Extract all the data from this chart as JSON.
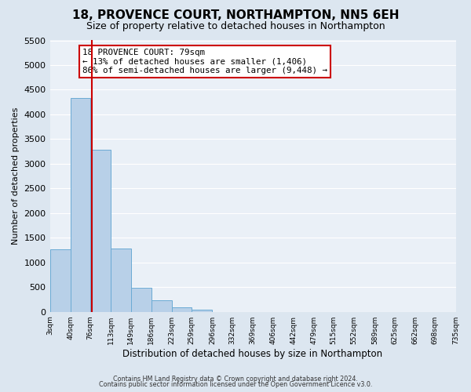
{
  "title": "18, PROVENCE COURT, NORTHAMPTON, NN5 6EH",
  "subtitle": "Size of property relative to detached houses in Northampton",
  "xlabel": "Distribution of detached houses by size in Northampton",
  "ylabel": "Number of detached properties",
  "bin_edges": [
    3,
    40,
    76,
    113,
    149,
    186,
    223,
    259,
    296,
    332,
    369,
    406,
    442,
    479,
    515,
    552,
    589,
    625,
    662,
    698,
    735
  ],
  "bar_heights": [
    1270,
    4340,
    3280,
    1290,
    480,
    230,
    90,
    50,
    0,
    0,
    0,
    0,
    0,
    0,
    0,
    0,
    0,
    0,
    0,
    0
  ],
  "bar_color": "#b8d0e8",
  "bar_edge_color": "#6aaad4",
  "property_line_x": 79,
  "ylim": [
    0,
    5500
  ],
  "yticks": [
    0,
    500,
    1000,
    1500,
    2000,
    2500,
    3000,
    3500,
    4000,
    4500,
    5000,
    5500
  ],
  "annotation_title": "18 PROVENCE COURT: 79sqm",
  "annotation_line1": "← 13% of detached houses are smaller (1,406)",
  "annotation_line2": "86% of semi-detached houses are larger (9,448) →",
  "annotation_box_color": "#ffffff",
  "annotation_box_edge_color": "#cc0000",
  "vline_color": "#cc0000",
  "tick_labels": [
    "3sqm",
    "40sqm",
    "76sqm",
    "113sqm",
    "149sqm",
    "186sqm",
    "223sqm",
    "259sqm",
    "296sqm",
    "332sqm",
    "369sqm",
    "406sqm",
    "442sqm",
    "479sqm",
    "515sqm",
    "552sqm",
    "589sqm",
    "625sqm",
    "662sqm",
    "698sqm",
    "735sqm"
  ],
  "footer_line1": "Contains HM Land Registry data © Crown copyright and database right 2024.",
  "footer_line2": "Contains public sector information licensed under the Open Government Licence v3.0.",
  "bg_color": "#dce6f0",
  "plot_bg_color": "#eaf0f7",
  "grid_color": "#ffffff",
  "title_fontsize": 11,
  "subtitle_fontsize": 9
}
